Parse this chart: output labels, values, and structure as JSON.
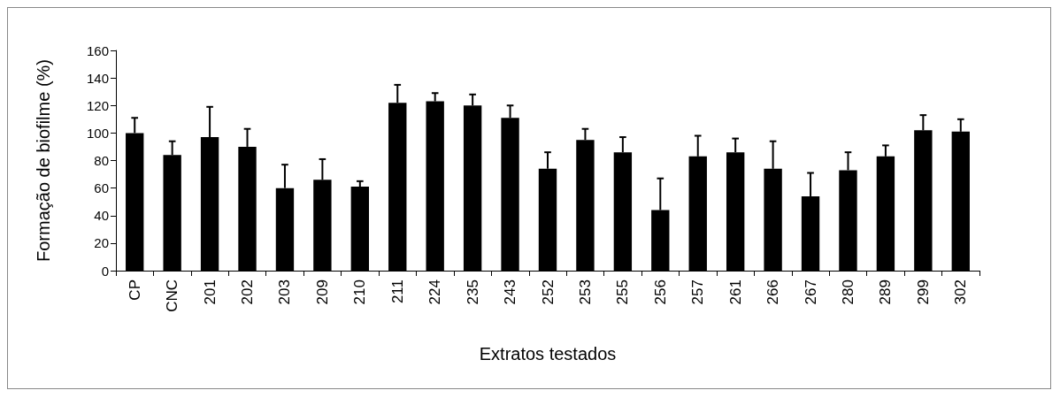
{
  "chart_data": {
    "type": "bar",
    "xlabel": "Extratos testados",
    "ylabel": "Formação de biofilme (%)",
    "categories": [
      "CP",
      "CNC",
      "201",
      "202",
      "203",
      "209",
      "210",
      "211",
      "224",
      "235",
      "243",
      "252",
      "253",
      "255",
      "256",
      "257",
      "261",
      "266",
      "267",
      "280",
      "289",
      "299",
      "302"
    ],
    "values": [
      100,
      84,
      97,
      90,
      60,
      66,
      61,
      122,
      123,
      120,
      111,
      74,
      95,
      86,
      44,
      83,
      86,
      74,
      54,
      73,
      83,
      102,
      101
    ],
    "errors": [
      [
        100,
        111
      ],
      [
        84,
        94
      ],
      [
        97,
        119
      ],
      [
        90,
        103
      ],
      [
        60,
        77
      ],
      [
        66,
        81
      ],
      [
        61,
        65
      ],
      [
        122,
        135
      ],
      [
        123,
        129
      ],
      [
        120,
        128
      ],
      [
        111,
        120
      ],
      [
        74,
        86
      ],
      [
        95,
        103
      ],
      [
        86,
        97
      ],
      [
        44,
        67
      ],
      [
        83,
        98
      ],
      [
        86,
        96
      ],
      [
        74,
        94
      ],
      [
        54,
        71
      ],
      [
        73,
        86
      ],
      [
        83,
        91
      ],
      [
        102,
        113
      ],
      [
        101,
        110
      ]
    ],
    "color": "#000000",
    "ylim": [
      0,
      160
    ],
    "yticks": [
      0,
      20,
      40,
      60,
      80,
      100,
      120,
      140,
      160
    ],
    "grid": false
  }
}
